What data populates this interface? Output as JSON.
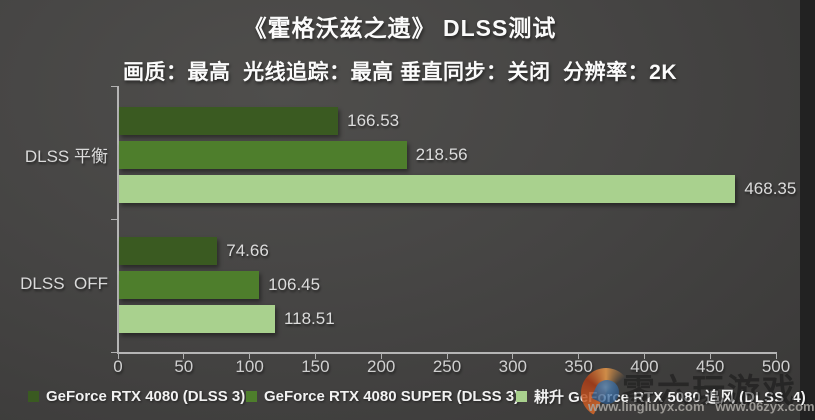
{
  "title": "《霍格沃兹之遗》 DLSS测试",
  "subtitle": "画质：最高  光线追踪：最高 垂直同步：关闭  分辨率：2K",
  "chart_data": {
    "type": "bar",
    "orientation": "horizontal",
    "title": "《霍格沃兹之遗》 DLSS测试",
    "subtitle": "画质：最高  光线追踪：最高 垂直同步：关闭  分辨率：2K",
    "categories": [
      "DLSS 平衡",
      "DLSS  OFF"
    ],
    "series": [
      {
        "name": "GeForce RTX 4080 (DLSS 3)",
        "color": "#3a5a21",
        "values": [
          166.53,
          74.66
        ]
      },
      {
        "name": "GeForce RTX 4080 SUPER (DLSS 3)",
        "color": "#4e7e2c",
        "values": [
          218.56,
          106.45
        ]
      },
      {
        "name": "耕升 GeForce RTX 5080 追风 (DLSS  4)",
        "color": "#a9d18e",
        "values": [
          468.35,
          118.51
        ]
      }
    ],
    "xlim": [
      0,
      500
    ],
    "x_ticks": [
      0,
      50,
      100,
      150,
      200,
      250,
      300,
      350,
      400,
      450,
      500
    ],
    "grid": false,
    "legend_position": "bottom",
    "value_labels": true
  },
  "watermark": {
    "brand": "零六玩游戏",
    "urls": "www.lingliuyx.com   www.06zyx.com"
  },
  "colors": {
    "background": "#454443",
    "axis": "#b5b5b5",
    "text": "#fbfbfb",
    "value_text": "#dcdcdc"
  }
}
